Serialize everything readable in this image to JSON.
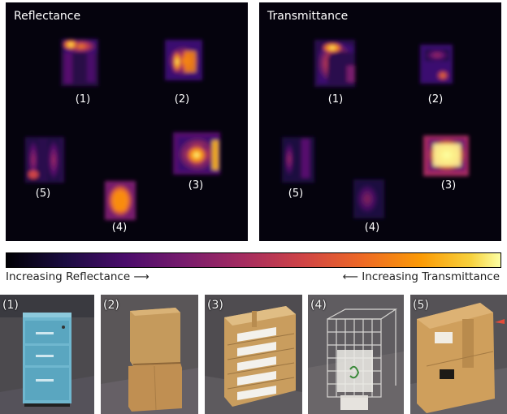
{
  "panels": {
    "reflectance": {
      "title": "Reflectance",
      "labels": [
        "(1)",
        "(2)",
        "(5)",
        "(3)",
        "(4)"
      ]
    },
    "transmittance": {
      "title": "Transmittance",
      "labels": [
        "(1)",
        "(2)",
        "(5)",
        "(3)",
        "(4)"
      ]
    }
  },
  "colorbar": {
    "colormap": "inferno",
    "left_text": "Increasing Reflectance ⟶",
    "right_text": "⟵ Increasing Transmittance"
  },
  "photos": [
    {
      "label": "(1)",
      "object": "blue filing cabinet"
    },
    {
      "label": "(2)",
      "object": "stacked cardboard boxes"
    },
    {
      "label": "(3)",
      "object": "stack of labeled boxes"
    },
    {
      "label": "(4)",
      "object": "wire cage"
    },
    {
      "label": "(5)",
      "object": "large cardboard box"
    }
  ]
}
